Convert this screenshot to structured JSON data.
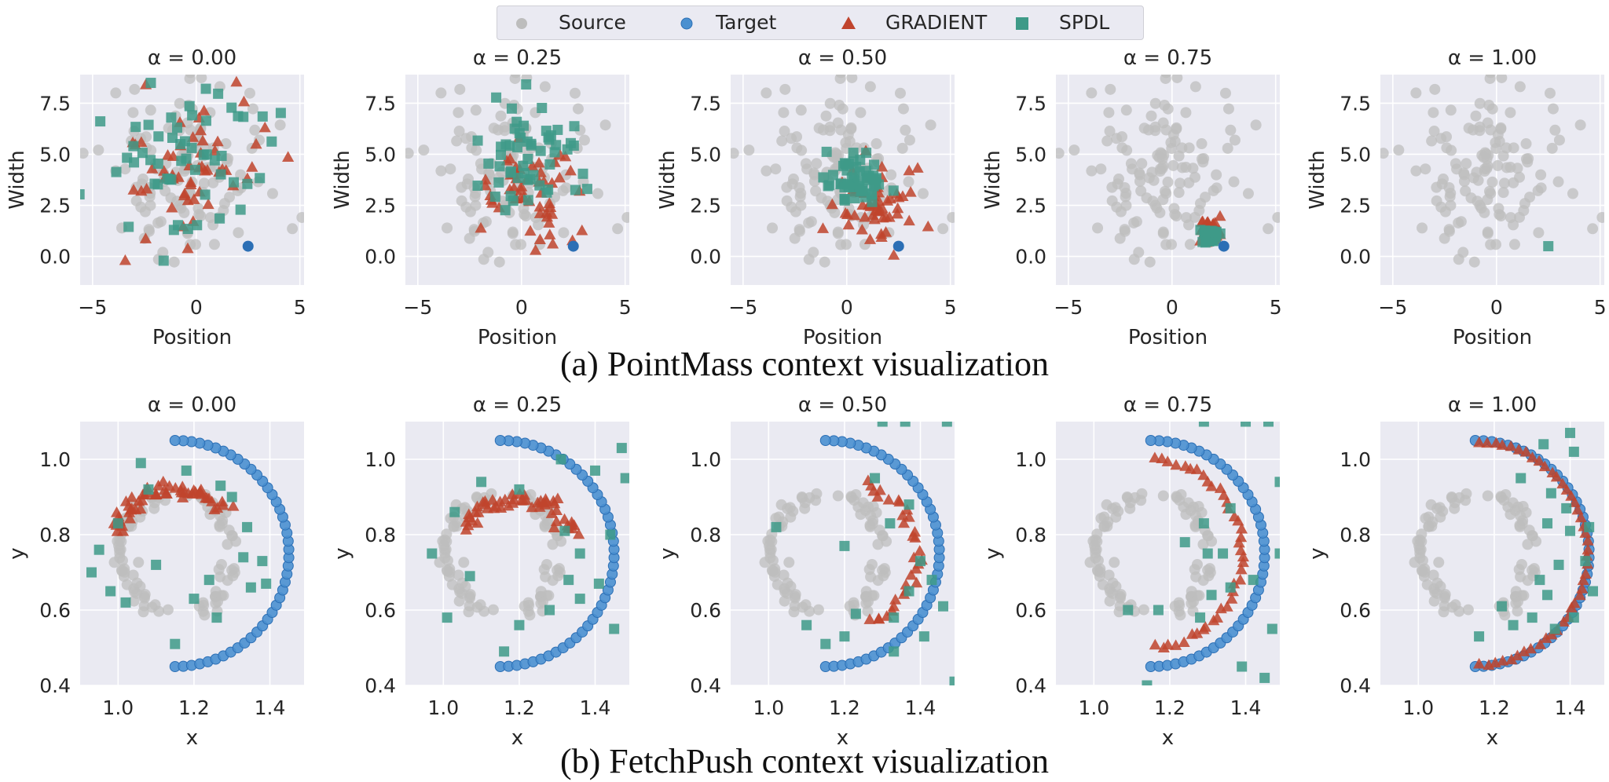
{
  "legend": {
    "items": [
      {
        "label": "Source",
        "marker": "circle",
        "color": "#bdbdbd"
      },
      {
        "label": "Target",
        "marker": "circle",
        "color": "#4a90d0"
      },
      {
        "label": "GRADIENT",
        "marker": "triangle",
        "color": "#c0442d"
      },
      {
        "label": "SPDL",
        "marker": "square",
        "color": "#3e9a88"
      }
    ]
  },
  "captions": {
    "a": "(a) PointMass context visualization",
    "b": "(b) FetchPush context visualization"
  },
  "colors": {
    "panel_bg": "#eaeaf2",
    "grid": "#ffffff",
    "source": "#bdbdbd",
    "target": "#4a90d0",
    "target_dark": "#2c6fb5",
    "gradient": "#c0442d",
    "spdl": "#3e9a88"
  },
  "chart_data": [
    {
      "type": "scatter",
      "row": "PointMass",
      "alpha_titles": [
        "α = 0.00",
        "α = 0.25",
        "α = 0.50",
        "α = 0.75",
        "α = 1.00"
      ],
      "xlabel": "Position",
      "ylabel": "Width",
      "xlim": [
        -5.6,
        5.2
      ],
      "ylim": [
        -1.4,
        8.9
      ],
      "xticks": [
        -5,
        0,
        5
      ],
      "xtick_labels": [
        "−5",
        "0",
        "5"
      ],
      "yticks": [
        0.0,
        2.5,
        5.0,
        7.5
      ],
      "ytick_labels": [
        "0.0",
        "2.5",
        "5.0",
        "7.5"
      ],
      "source": {
        "center": [
          -0.5,
          4.0
        ],
        "spread": [
          2.0,
          2.0
        ],
        "count": 130
      },
      "target": [
        2.5,
        0.5
      ],
      "gradient": [
        {
          "center": [
            -0.3,
            4.4
          ],
          "spread": [
            1.7,
            1.7
          ],
          "count": 55
        },
        {
          "center": [
            0.3,
            3.0
          ],
          "spread": [
            1.3,
            1.3
          ],
          "count": 55
        },
        {
          "center": [
            1.4,
            2.6
          ],
          "spread": [
            0.8,
            0.9
          ],
          "count": 55
        },
        {
          "center": [
            1.8,
            1.2
          ],
          "spread": [
            0.25,
            0.25
          ],
          "count": 55
        },
        null
      ],
      "spdl": [
        {
          "center": [
            -0.5,
            4.6
          ],
          "spread": [
            2.0,
            1.9
          ],
          "count": 55
        },
        {
          "center": [
            0.6,
            5.2
          ],
          "spread": [
            1.3,
            1.3
          ],
          "count": 55
        },
        {
          "center": [
            0.5,
            3.9
          ],
          "spread": [
            0.7,
            0.7
          ],
          "count": 55
        },
        {
          "center": [
            1.8,
            1.0
          ],
          "spread": [
            0.15,
            0.15
          ],
          "count": 55
        },
        {
          "center": [
            2.5,
            0.5
          ],
          "spread": [
            0.0,
            0.0
          ],
          "count": 1
        }
      ]
    },
    {
      "type": "scatter",
      "row": "FetchPush",
      "alpha_titles": [
        "α = 0.00",
        "α = 0.25",
        "α = 0.50",
        "α = 0.75",
        "α = 1.00"
      ],
      "xlabel": "x",
      "ylabel": "y",
      "xlim": [
        0.9,
        1.49
      ],
      "ylim": [
        0.4,
        1.1
      ],
      "xticks": [
        1.0,
        1.2,
        1.4
      ],
      "xtick_labels": [
        "1.0",
        "1.2",
        "1.4"
      ],
      "yticks": [
        0.4,
        0.6,
        0.8,
        1.0
      ],
      "ytick_labels": [
        "0.4",
        "0.6",
        "0.8",
        "1.0"
      ],
      "source_arcs": [
        {
          "cx": 1.17,
          "cy": 0.75,
          "r": 0.16,
          "a0": 110,
          "a1": 180,
          "n": 26
        },
        {
          "cx": 1.17,
          "cy": 0.75,
          "r": 0.16,
          "a0": 180,
          "a1": 250,
          "n": 26
        },
        {
          "cx": 1.12,
          "cy": 0.75,
          "r": 0.18,
          "a0": 10,
          "a1": 60,
          "n": 22
        },
        {
          "cx": 1.12,
          "cy": 0.75,
          "r": 0.18,
          "a0": -60,
          "a1": -10,
          "n": 22
        }
      ],
      "target_arc": {
        "cx": 1.15,
        "cy": 0.75,
        "r": 0.3,
        "a0": -90,
        "a1": 90,
        "n": 44
      },
      "gradient_arcs": [
        {
          "cx": 1.15,
          "cy": 0.75,
          "r": 0.17,
          "a0": 45,
          "a1": 160,
          "n": 28,
          "jitter": 0.012
        },
        {
          "cx": 1.2,
          "cy": 0.74,
          "r": 0.16,
          "a0": 25,
          "a1": 150,
          "n": 26,
          "jitter": 0.012
        },
        {
          "cx": 1.2,
          "cy": 0.75,
          "r": 0.19,
          "a0": -70,
          "a1": 75,
          "n": 32,
          "jitter": 0.008
        },
        {
          "cx": 1.14,
          "cy": 0.75,
          "r": 0.25,
          "a0": -85,
          "a1": 85,
          "n": 40,
          "jitter": 0.004
        },
        {
          "cx": 1.15,
          "cy": 0.75,
          "r": 0.295,
          "a0": -88,
          "a1": 88,
          "n": 44,
          "jitter": 0.002
        }
      ],
      "spdl_points": [
        [
          [
            1.06,
            0.99
          ],
          [
            1.18,
            0.97
          ],
          [
            1.27,
            0.93
          ],
          [
            0.95,
            0.76
          ],
          [
            0.93,
            0.7
          ],
          [
            1.02,
            0.62
          ],
          [
            1.1,
            0.72
          ],
          [
            1.3,
            0.9
          ],
          [
            1.34,
            0.82
          ],
          [
            1.38,
            0.73
          ],
          [
            1.35,
            0.66
          ],
          [
            1.2,
            0.63
          ],
          [
            1.26,
            0.58
          ],
          [
            1.15,
            0.51
          ],
          [
            0.98,
            0.65
          ],
          [
            1.33,
            0.74
          ],
          [
            1.08,
            0.92
          ],
          [
            1.39,
            0.67
          ],
          [
            1.24,
            0.68
          ],
          [
            1.0,
            0.83
          ]
        ],
        [
          [
            0.97,
            0.75
          ],
          [
            1.03,
            0.86
          ],
          [
            1.1,
            0.94
          ],
          [
            1.2,
            0.92
          ],
          [
            1.31,
            1.0
          ],
          [
            1.4,
            0.97
          ],
          [
            1.47,
            1.03
          ],
          [
            1.48,
            0.95
          ],
          [
            1.44,
            0.8
          ],
          [
            1.36,
            0.75
          ],
          [
            1.33,
            0.68
          ],
          [
            1.28,
            0.6
          ],
          [
            1.2,
            0.56
          ],
          [
            1.01,
            0.58
          ],
          [
            1.32,
            0.81
          ],
          [
            1.41,
            0.67
          ],
          [
            1.16,
            0.49
          ],
          [
            1.36,
            0.63
          ],
          [
            1.07,
            0.69
          ],
          [
            1.45,
            0.55
          ]
        ],
        [
          [
            1.3,
            1.1
          ],
          [
            1.36,
            1.1
          ],
          [
            1.47,
            1.1
          ],
          [
            1.37,
            0.88
          ],
          [
            1.32,
            0.83
          ],
          [
            1.2,
            0.77
          ],
          [
            1.4,
            0.73
          ],
          [
            1.43,
            0.68
          ],
          [
            1.37,
            0.65
          ],
          [
            1.33,
            0.58
          ],
          [
            1.2,
            0.53
          ],
          [
            1.15,
            0.51
          ],
          [
            1.02,
            0.82
          ],
          [
            1.23,
            0.59
          ],
          [
            1.46,
            0.61
          ],
          [
            1.1,
            0.56
          ],
          [
            1.41,
            0.53
          ],
          [
            1.33,
            0.49
          ],
          [
            1.49,
            0.41
          ],
          [
            1.28,
            0.95
          ]
        ],
        [
          [
            1.29,
            1.1
          ],
          [
            1.4,
            1.1
          ],
          [
            1.46,
            1.1
          ],
          [
            1.49,
            0.94
          ],
          [
            1.36,
            0.87
          ],
          [
            1.29,
            0.83
          ],
          [
            1.24,
            0.78
          ],
          [
            1.3,
            0.75
          ],
          [
            1.36,
            0.66
          ],
          [
            1.31,
            0.64
          ],
          [
            1.28,
            0.58
          ],
          [
            1.17,
            0.6
          ],
          [
            1.09,
            0.6
          ],
          [
            1.49,
            0.75
          ],
          [
            1.42,
            0.68
          ],
          [
            1.47,
            0.55
          ],
          [
            1.39,
            0.45
          ],
          [
            1.45,
            0.42
          ],
          [
            1.34,
            0.75
          ],
          [
            1.14,
            0.4
          ]
        ],
        [
          [
            1.33,
            1.04
          ],
          [
            1.4,
            1.07
          ],
          [
            1.41,
            1.02
          ],
          [
            1.35,
            0.91
          ],
          [
            1.34,
            0.83
          ],
          [
            1.4,
            0.81
          ],
          [
            1.44,
            0.73
          ],
          [
            1.37,
            0.72
          ],
          [
            1.34,
            0.64
          ],
          [
            1.41,
            0.58
          ],
          [
            1.3,
            0.58
          ],
          [
            1.25,
            0.56
          ],
          [
            1.16,
            0.53
          ],
          [
            1.45,
            0.82
          ],
          [
            1.39,
            0.87
          ],
          [
            1.27,
            0.95
          ],
          [
            1.32,
            0.68
          ],
          [
            1.22,
            0.61
          ],
          [
            1.46,
            0.65
          ],
          [
            1.36,
            0.55
          ]
        ]
      ]
    }
  ]
}
